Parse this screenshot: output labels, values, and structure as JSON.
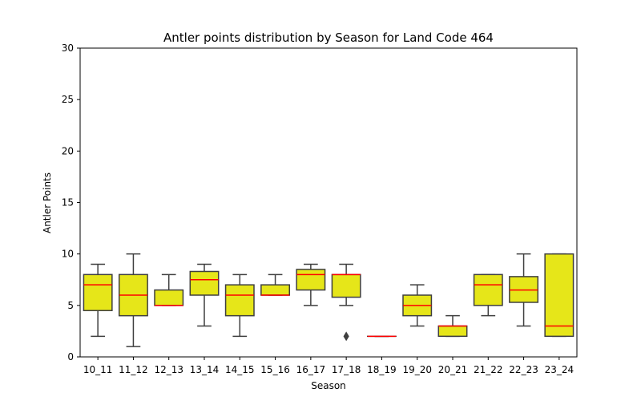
{
  "chart_data": {
    "type": "box",
    "title": "Antler points distribution by Season for Land Code 464",
    "xlabel": "Season",
    "ylabel": "Antler Points",
    "ylim": [
      0,
      30
    ],
    "yticks": [
      0,
      5,
      10,
      15,
      20,
      25,
      30
    ],
    "grid": false,
    "box_color": "#e6e619",
    "median_color": "#ff0000",
    "edge_color": "#3f3f3f",
    "categories": [
      "10_11",
      "11_12",
      "12_13",
      "13_14",
      "14_15",
      "15_16",
      "16_17",
      "17_18",
      "18_19",
      "19_20",
      "20_21",
      "21_22",
      "22_23",
      "23_24"
    ],
    "boxes": [
      {
        "season": "10_11",
        "whisker_low": 2,
        "q1": 4.5,
        "median": 7,
        "q3": 8,
        "whisker_high": 9,
        "outliers": []
      },
      {
        "season": "11_12",
        "whisker_low": 1,
        "q1": 4,
        "median": 6,
        "q3": 8,
        "whisker_high": 10,
        "outliers": []
      },
      {
        "season": "12_13",
        "whisker_low": 5,
        "q1": 5,
        "median": 5,
        "q3": 6.5,
        "whisker_high": 8,
        "outliers": []
      },
      {
        "season": "13_14",
        "whisker_low": 3,
        "q1": 6,
        "median": 7.5,
        "q3": 8.3,
        "whisker_high": 9,
        "outliers": []
      },
      {
        "season": "14_15",
        "whisker_low": 2,
        "q1": 4,
        "median": 6,
        "q3": 7,
        "whisker_high": 8,
        "outliers": []
      },
      {
        "season": "15_16",
        "whisker_low": 6,
        "q1": 6,
        "median": 6,
        "q3": 7,
        "whisker_high": 8,
        "outliers": []
      },
      {
        "season": "16_17",
        "whisker_low": 5,
        "q1": 6.5,
        "median": 8,
        "q3": 8.5,
        "whisker_high": 9,
        "outliers": []
      },
      {
        "season": "17_18",
        "whisker_low": 5,
        "q1": 5.8,
        "median": 8,
        "q3": 8,
        "whisker_high": 9,
        "outliers": [
          2
        ]
      },
      {
        "season": "18_19",
        "whisker_low": 2,
        "q1": 2,
        "median": 2,
        "q3": 2,
        "whisker_high": 2,
        "outliers": []
      },
      {
        "season": "19_20",
        "whisker_low": 3,
        "q1": 4,
        "median": 5,
        "q3": 6,
        "whisker_high": 7,
        "outliers": []
      },
      {
        "season": "20_21",
        "whisker_low": 2,
        "q1": 2,
        "median": 3,
        "q3": 3,
        "whisker_high": 4,
        "outliers": []
      },
      {
        "season": "21_22",
        "whisker_low": 4,
        "q1": 5,
        "median": 7,
        "q3": 8,
        "whisker_high": 8,
        "outliers": []
      },
      {
        "season": "22_23",
        "whisker_low": 3,
        "q1": 5.3,
        "median": 6.5,
        "q3": 7.8,
        "whisker_high": 10,
        "outliers": []
      },
      {
        "season": "23_24",
        "whisker_low": 2,
        "q1": 2,
        "median": 3,
        "q3": 10,
        "whisker_high": 10,
        "outliers": []
      }
    ]
  }
}
